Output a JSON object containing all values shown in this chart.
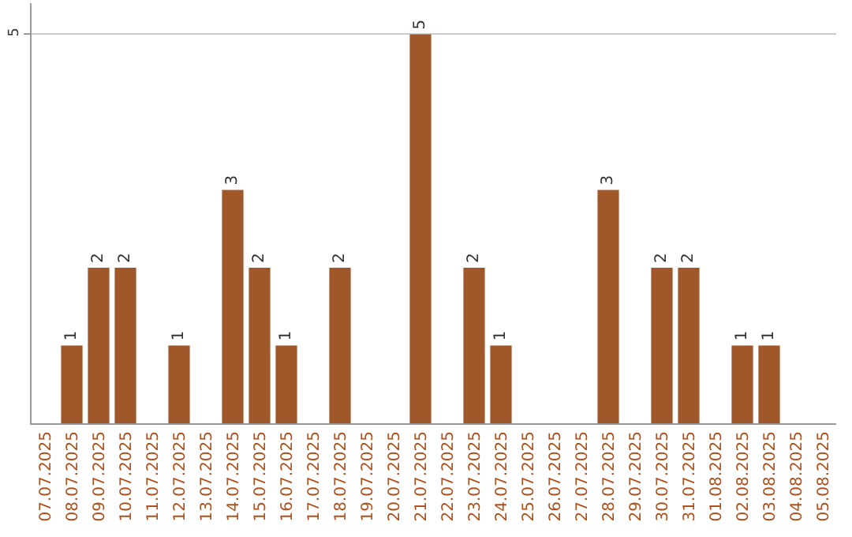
{
  "chart_data": {
    "type": "bar",
    "categories": [
      "07.07.2025",
      "08.07.2025",
      "09.07.2025",
      "10.07.2025",
      "11.07.2025",
      "12.07.2025",
      "13.07.2025",
      "14.07.2025",
      "15.07.2025",
      "16.07.2025",
      "17.07.2025",
      "18.07.2025",
      "19.07.2025",
      "20.07.2025",
      "21.07.2025",
      "22.07.2025",
      "23.07.2025",
      "24.07.2025",
      "25.07.2025",
      "26.07.2025",
      "27.07.2025",
      "28.07.2025",
      "29.07.2025",
      "30.07.2025",
      "31.07.2025",
      "01.08.2025",
      "02.08.2025",
      "03.08.2025",
      "04.08.2025",
      "05.08.2025"
    ],
    "values": [
      0,
      1,
      2,
      2,
      0,
      1,
      0,
      3,
      2,
      1,
      0,
      2,
      0,
      0,
      5,
      0,
      2,
      1,
      0,
      0,
      0,
      3,
      0,
      2,
      2,
      0,
      1,
      1,
      0,
      0
    ],
    "value_labels": [
      null,
      "1",
      "2",
      "2",
      null,
      "1",
      null,
      "3",
      "2",
      "1",
      null,
      "2",
      null,
      null,
      "5",
      null,
      "2",
      "1",
      null,
      null,
      null,
      "3",
      null,
      "2",
      "2",
      null,
      "1",
      "1",
      null,
      null
    ],
    "color": "#a0582a",
    "ylim": [
      0,
      5.4
    ],
    "yticks": [
      5
    ],
    "grid": "y",
    "legend": false
  }
}
